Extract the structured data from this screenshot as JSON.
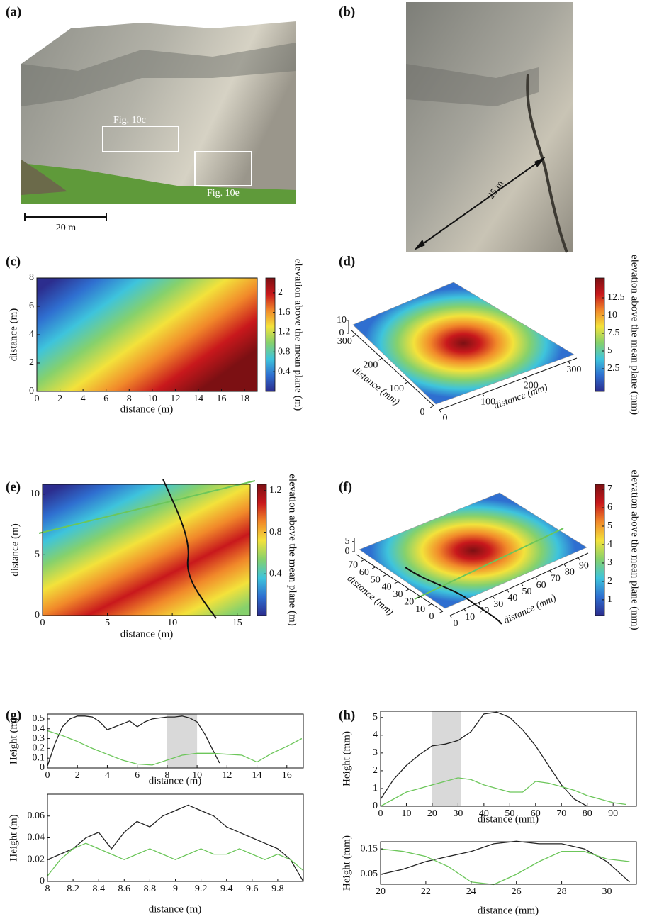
{
  "panel_labels": [
    "(a)",
    "(b)",
    "(c)",
    "(d)",
    "(e)",
    "(f)",
    "(g)",
    "(h)"
  ],
  "photo_a": {
    "boxes": [
      "Fig. 10c",
      "Fig. 10e"
    ],
    "scale_bar": "20 m"
  },
  "photo_b": {
    "scale_arrow": "25 m"
  },
  "chart_data": [
    {
      "type": "heatmap",
      "xlabel": "distance (m)",
      "ylabel": "distance (m)",
      "xlim": [
        0,
        19.1
      ],
      "xticks": [
        0,
        2,
        4,
        6,
        8,
        10,
        12,
        14,
        16,
        18
      ],
      "ylim": [
        0,
        8
      ],
      "yticks": [
        0,
        2,
        4,
        6,
        8
      ],
      "clim": [
        0,
        2.3
      ],
      "cticks": [
        0.4,
        0.8,
        1.2,
        1.6,
        2
      ],
      "colorbar_label": "elevation above the mean plane (m)",
      "colormap": [
        "#2c2d8e",
        "#2f6fd0",
        "#3ec4dc",
        "#86d16c",
        "#f3e23b",
        "#f1892a",
        "#c8181c",
        "#7c1013"
      ]
    },
    {
      "type": "surface",
      "xlabel": "distance (mm)",
      "ylabel": "distance (mm)",
      "xlim": [
        0,
        320
      ],
      "xticks": [
        0,
        100,
        200,
        300
      ],
      "ylim": [
        0,
        320
      ],
      "yticks": [
        0,
        100,
        200,
        300
      ],
      "zlim": [
        0,
        10
      ],
      "zticks": [
        0,
        10
      ],
      "clim": [
        -0.7,
        15.3
      ],
      "cticks": [
        2.5,
        5,
        7.5,
        10,
        12.5
      ],
      "colorbar_label": "elevation above the mean plane (mm)",
      "colormap": [
        "#2c2d8e",
        "#2f6fd0",
        "#3ec4dc",
        "#86d16c",
        "#f3e23b",
        "#f1892a",
        "#c8181c",
        "#7c1013"
      ]
    },
    {
      "type": "heatmap",
      "xlabel": "distance (m)",
      "ylabel": "distance (m)",
      "xlim": [
        0,
        16
      ],
      "xticks": [
        0,
        5,
        10,
        15
      ],
      "ylim": [
        0,
        10.8
      ],
      "yticks": [
        0,
        5,
        10
      ],
      "clim": [
        0,
        1.26
      ],
      "cticks": [
        0.4,
        0.8,
        1.2
      ],
      "colorbar_label": "elevation above the mean plane (m)",
      "colormap": [
        "#2c2d8e",
        "#2f6fd0",
        "#3ec4dc",
        "#86d16c",
        "#f3e23b",
        "#f1892a",
        "#c8181c",
        "#7c1013"
      ]
    },
    {
      "type": "surface",
      "xlabel": "distance (mm)",
      "ylabel": "distance (mm)",
      "xlim": [
        0,
        97
      ],
      "xticks": [
        0,
        10,
        20,
        30,
        40,
        50,
        60,
        70,
        80,
        90
      ],
      "ylim": [
        0,
        77
      ],
      "yticks": [
        0,
        10,
        20,
        30,
        40,
        50,
        60,
        70
      ],
      "zlim": [
        0,
        7
      ],
      "zticks": [
        0,
        5
      ],
      "clim": [
        0.15,
        7.27
      ],
      "cticks": [
        1,
        2,
        3,
        4,
        5,
        6,
        7
      ],
      "colorbar_label": "elevation above the mean plane (mm)",
      "colormap": [
        "#2c2d8e",
        "#2f6fd0",
        "#3ec4dc",
        "#86d16c",
        "#f3e23b",
        "#f1892a",
        "#c8181c",
        "#7c1013"
      ]
    },
    {
      "type": "line",
      "xlabel": "distance (m)",
      "ylabel": "Height (m)",
      "xlim": [
        0,
        17.1
      ],
      "xticks": [
        0,
        2,
        4,
        6,
        8,
        10,
        12,
        14,
        16
      ],
      "ylim": [
        0,
        0.55
      ],
      "yticks": [
        0,
        0.1,
        0.2,
        0.3,
        0.4,
        0.5
      ],
      "shade_x": [
        8,
        10
      ],
      "series": [
        {
          "color": "#222222",
          "x": [
            0,
            0.5,
            1,
            1.5,
            2,
            2.5,
            3,
            3.5,
            4,
            4.5,
            5,
            5.5,
            6,
            6.5,
            7,
            7.5,
            8,
            8.5,
            9,
            9.5,
            10,
            10.5,
            11,
            11.5
          ],
          "values": [
            0.02,
            0.25,
            0.42,
            0.5,
            0.53,
            0.53,
            0.52,
            0.47,
            0.39,
            0.42,
            0.45,
            0.48,
            0.42,
            0.47,
            0.5,
            0.51,
            0.52,
            0.52,
            0.53,
            0.51,
            0.47,
            0.35,
            0.2,
            0.05
          ]
        },
        {
          "color": "#6cc65a",
          "x": [
            0,
            1,
            2,
            3,
            4,
            5,
            6,
            7,
            8,
            9,
            10,
            11,
            12,
            13,
            14,
            15,
            16,
            17
          ],
          "values": [
            0.38,
            0.33,
            0.27,
            0.2,
            0.14,
            0.08,
            0.04,
            0.03,
            0.08,
            0.13,
            0.15,
            0.15,
            0.14,
            0.13,
            0.06,
            0.15,
            0.22,
            0.3
          ]
        }
      ]
    },
    {
      "type": "line",
      "xlabel": "distance (m)",
      "ylabel": "Height (m)",
      "xlim": [
        8,
        10
      ],
      "xticks": [
        8,
        8.2,
        8.4,
        8.6,
        8.8,
        9,
        9.2,
        9.4,
        9.6,
        9.8
      ],
      "ylim": [
        0,
        0.08
      ],
      "yticks": [
        0,
        0.02,
        0.04,
        0.06
      ],
      "series": [
        {
          "color": "#222222",
          "x": [
            8,
            8.1,
            8.2,
            8.3,
            8.4,
            8.5,
            8.6,
            8.7,
            8.8,
            8.9,
            9,
            9.1,
            9.2,
            9.3,
            9.4,
            9.5,
            9.6,
            9.7,
            9.8,
            9.9,
            10
          ],
          "values": [
            0.02,
            0.025,
            0.03,
            0.04,
            0.045,
            0.03,
            0.045,
            0.055,
            0.05,
            0.06,
            0.065,
            0.07,
            0.065,
            0.06,
            0.05,
            0.045,
            0.04,
            0.035,
            0.03,
            0.02,
            0
          ]
        },
        {
          "color": "#6cc65a",
          "x": [
            8,
            8.1,
            8.2,
            8.3,
            8.4,
            8.5,
            8.6,
            8.7,
            8.8,
            8.9,
            9,
            9.1,
            9.2,
            9.3,
            9.4,
            9.5,
            9.6,
            9.7,
            9.8,
            9.9,
            10
          ],
          "values": [
            0.005,
            0.02,
            0.03,
            0.035,
            0.03,
            0.025,
            0.02,
            0.025,
            0.03,
            0.025,
            0.02,
            0.025,
            0.03,
            0.025,
            0.025,
            0.03,
            0.025,
            0.02,
            0.025,
            0.02,
            0.01
          ]
        }
      ]
    },
    {
      "type": "line",
      "xlabel": "distance (mm)",
      "ylabel": "Height (mm)",
      "xlim": [
        0,
        99
      ],
      "xticks": [
        0,
        10,
        20,
        30,
        40,
        50,
        60,
        70,
        80,
        90
      ],
      "ylim": [
        0,
        5.35
      ],
      "yticks": [
        0,
        1,
        2,
        3,
        4,
        5
      ],
      "shade_x": [
        20,
        31
      ],
      "series": [
        {
          "color": "#222222",
          "x": [
            0,
            5,
            10,
            15,
            20,
            25,
            30,
            35,
            40,
            45,
            50,
            55,
            60,
            65,
            70,
            75,
            80
          ],
          "values": [
            0.4,
            1.5,
            2.3,
            2.9,
            3.4,
            3.5,
            3.7,
            4.2,
            5.2,
            5.3,
            5,
            4.3,
            3.4,
            2.3,
            1.2,
            0.4,
            0
          ]
        },
        {
          "color": "#6cc65a",
          "x": [
            0,
            5,
            10,
            15,
            20,
            25,
            30,
            35,
            40,
            45,
            50,
            55,
            60,
            65,
            70,
            75,
            80,
            85,
            90,
            95
          ],
          "values": [
            0,
            0.4,
            0.8,
            1,
            1.2,
            1.4,
            1.6,
            1.5,
            1.2,
            1,
            0.8,
            0.8,
            1.4,
            1.3,
            1.1,
            0.9,
            0.6,
            0.4,
            0.2,
            0.1
          ]
        }
      ]
    },
    {
      "type": "line",
      "xlabel": "distance (mm)",
      "ylabel": "Height (mm)",
      "xlim": [
        20,
        31.3
      ],
      "xticks": [
        20,
        22,
        24,
        26,
        28,
        30
      ],
      "ylim": [
        0.011,
        0.178
      ],
      "yticks": [
        0.05,
        0.15
      ],
      "series": [
        {
          "color": "#222222",
          "x": [
            20,
            21,
            22,
            23,
            24,
            25,
            26,
            27,
            28,
            29,
            30,
            31
          ],
          "values": [
            0.05,
            0.07,
            0.1,
            0.12,
            0.14,
            0.17,
            0.18,
            0.17,
            0.17,
            0.15,
            0.1,
            0.02
          ]
        },
        {
          "color": "#6cc65a",
          "x": [
            20,
            21,
            22,
            23,
            24,
            25,
            26,
            27,
            28,
            29,
            30,
            31
          ],
          "values": [
            0.15,
            0.14,
            0.12,
            0.08,
            0.02,
            0.01,
            0.05,
            0.1,
            0.14,
            0.14,
            0.11,
            0.1
          ]
        }
      ]
    }
  ]
}
